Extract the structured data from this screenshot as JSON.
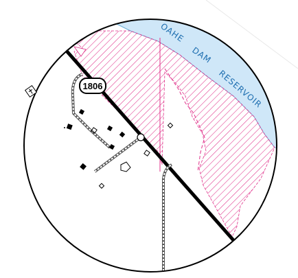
{
  "map": {
    "water_label_words": [
      "OAHE",
      "DAM",
      "RESERVOIR"
    ],
    "route_shield_number": "1806",
    "colors": {
      "water": "#cfe7f8",
      "water_outline": "#6aaed6",
      "hatch": "#e0318a",
      "road": "#000000",
      "background": "#ffffff"
    },
    "icons": [
      "cemetery-icon",
      "building-icon",
      "route-shield-icon",
      "intersection-marker-icon"
    ]
  }
}
